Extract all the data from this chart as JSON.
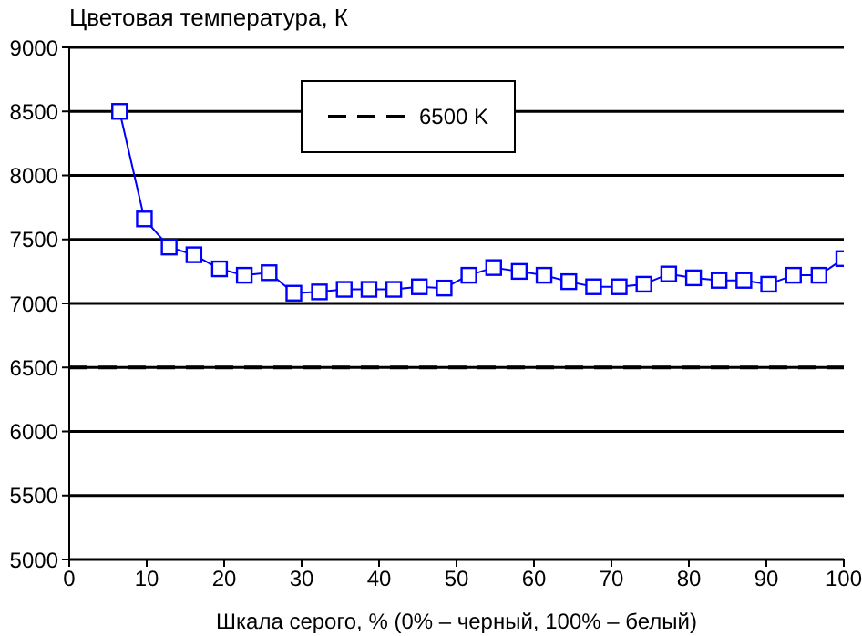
{
  "chart_data": {
    "type": "line",
    "ylabel": "Цветовая температура, К",
    "xlabel": "Шкала серого, % (0% – черный, 100% – белый)",
    "x": [
      6.5,
      9.7,
      12.9,
      16.1,
      19.4,
      22.6,
      25.8,
      29.0,
      32.3,
      35.5,
      38.7,
      41.9,
      45.2,
      48.4,
      51.6,
      54.8,
      58.1,
      61.3,
      64.5,
      67.7,
      71.0,
      74.2,
      77.4,
      80.6,
      83.9,
      87.1,
      90.3,
      93.5,
      96.8,
      100
    ],
    "series": [
      {
        "color": "#0000ff",
        "values": [
          8500,
          7660,
          7440,
          7380,
          7270,
          7220,
          7240,
          7080,
          7090,
          7110,
          7110,
          7110,
          7130,
          7120,
          7220,
          7280,
          7250,
          7220,
          7170,
          7130,
          7130,
          7150,
          7230,
          7200,
          7180,
          7180,
          7150,
          7220,
          7220,
          7350
        ]
      }
    ],
    "xlim": [
      0,
      100
    ],
    "xticks": [
      0,
      10,
      20,
      30,
      40,
      50,
      60,
      70,
      80,
      90,
      100
    ],
    "ylim": [
      5000,
      9000
    ],
    "yticks": [
      5000,
      5500,
      6000,
      6500,
      7000,
      7500,
      8000,
      8500,
      9000
    ],
    "ref_lines": [
      {
        "axis": "y",
        "value": 6500,
        "label": "6500 K",
        "color": "#000000",
        "line_style": "dashed"
      }
    ],
    "grid": "y",
    "legend": "top",
    "marker": "square",
    "line_style": "solid"
  }
}
